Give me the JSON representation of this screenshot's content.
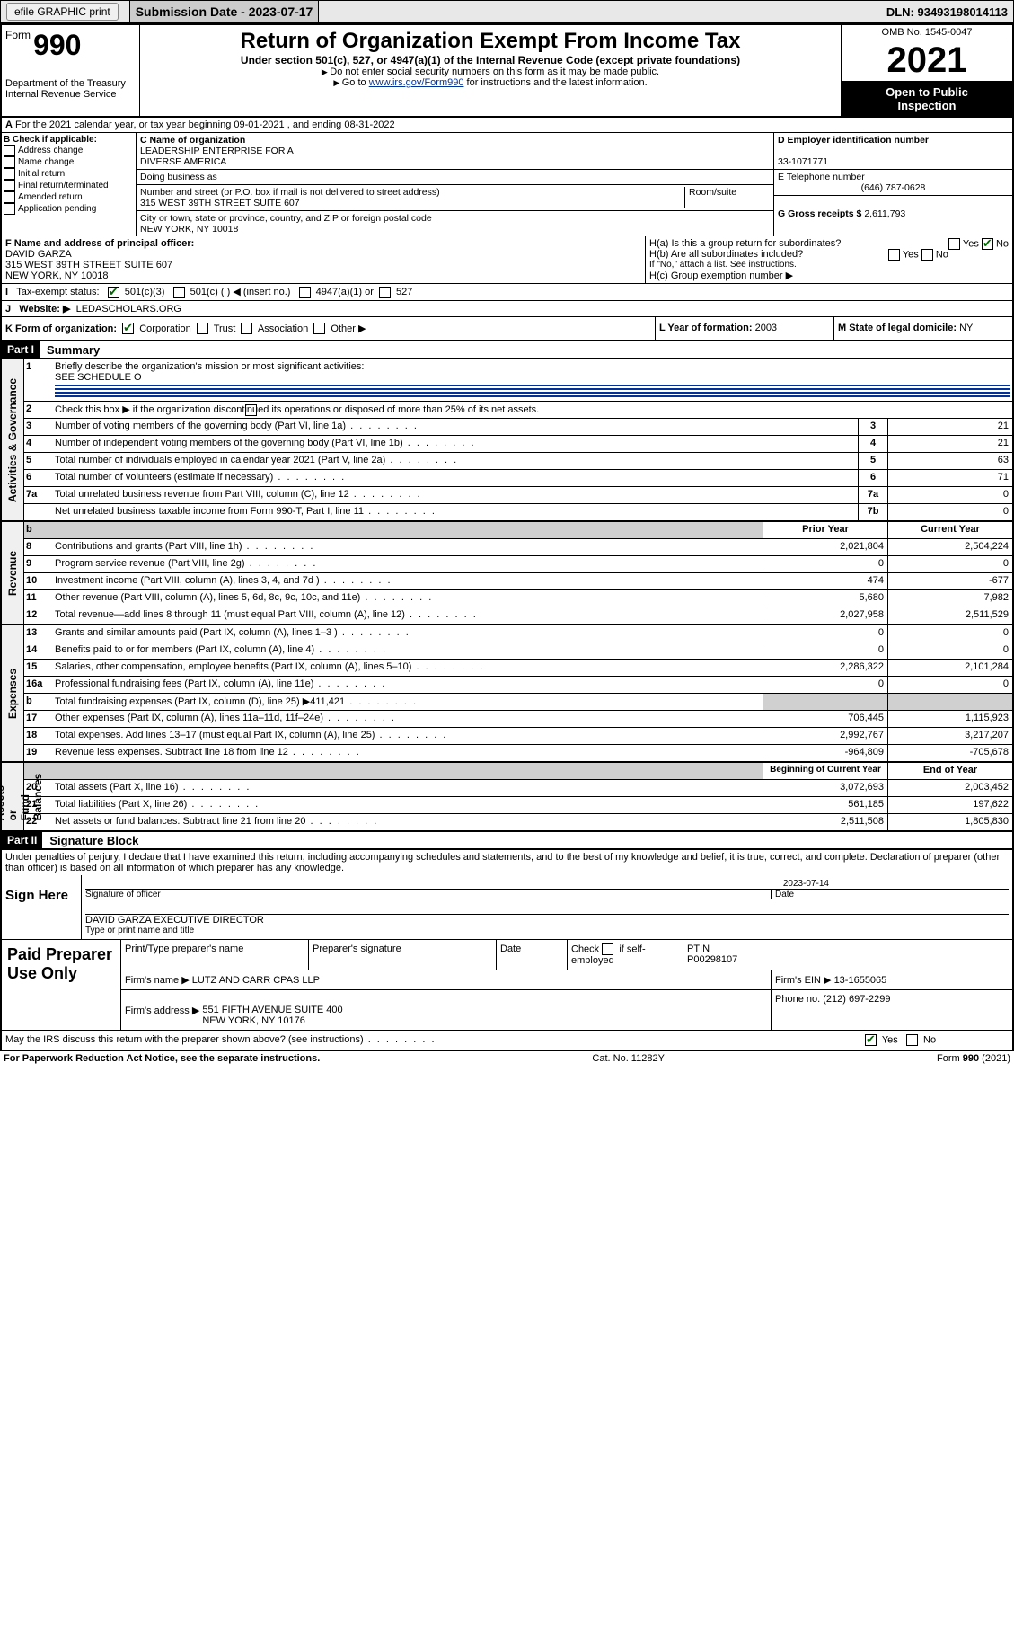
{
  "topbar": {
    "efile": "efile GRAPHIC print",
    "sub_label": "Submission Date - 2023-07-17",
    "dln": "DLN: 93493198014113"
  },
  "header": {
    "form_word": "Form",
    "form_num": "990",
    "dept": "Department of the Treasury\nInternal Revenue Service",
    "title": "Return of Organization Exempt From Income Tax",
    "sub": "Under section 501(c), 527, or 4947(a)(1) of the Internal Revenue Code (except private foundations)",
    "note1": "Do not enter social security numbers on this form as it may be made public.",
    "note2_a": "Go to ",
    "note2_link": "www.irs.gov/Form990",
    "note2_b": " for instructions and the latest information.",
    "omb": "OMB No. 1545-0047",
    "year": "2021",
    "open_pub": "Open to Public\nInspection"
  },
  "A": {
    "text": "For the 2021 calendar year, or tax year beginning 09-01-2021   , and ending 08-31-2022"
  },
  "B": {
    "label": "B Check if applicable:",
    "items": [
      "Address change",
      "Name change",
      "Initial return",
      "Final return/terminated",
      "Amended return",
      "Application pending"
    ]
  },
  "C": {
    "name_lbl": "C Name of organization",
    "name": "LEADERSHIP ENTERPRISE FOR A\nDIVERSE AMERICA",
    "dba_lbl": "Doing business as",
    "addr_lbl": "Number and street (or P.O. box if mail is not delivered to street address)",
    "room_lbl": "Room/suite",
    "addr": "315 WEST 39TH STREET SUITE 607",
    "city_lbl": "City or town, state or province, country, and ZIP or foreign postal code",
    "city": "NEW YORK, NY  10018"
  },
  "D": {
    "lbl": "D Employer identification number",
    "val": "33-1071771"
  },
  "E": {
    "lbl": "E Telephone number",
    "val": "(646) 787-0628"
  },
  "G": {
    "lbl": "G Gross receipts $",
    "val": "2,611,793"
  },
  "F": {
    "lbl": "F  Name and address of principal officer:",
    "val": "DAVID GARZA\n315 WEST 39TH STREET SUITE 607\nNEW YORK, NY  10018"
  },
  "H": {
    "a": "H(a)  Is this a group return for subordinates?",
    "b": "H(b)  Are all subordinates included?",
    "b2": "If \"No,\" attach a list. See instructions.",
    "c": "H(c)  Group exemption number ▶",
    "yes": "Yes",
    "no": "No"
  },
  "I": {
    "lbl": "Tax-exempt status:",
    "o1": "501(c)(3)",
    "o2": "501(c) (  ) ◀ (insert no.)",
    "o3": "4947(a)(1) or",
    "o4": "527"
  },
  "J": {
    "lbl": "Website: ▶",
    "val": "LEDASCHOLARS.ORG"
  },
  "K": {
    "lbl": "K Form of organization:",
    "o1": "Corporation",
    "o2": "Trust",
    "o3": "Association",
    "o4": "Other ▶",
    "L_lbl": "L Year of formation:",
    "L_val": "2003",
    "M_lbl": "M State of legal domicile:",
    "M_val": "NY"
  },
  "part1": {
    "hdr": "Part I",
    "title": "Summary"
  },
  "summary": {
    "q1": "Briefly describe the organization's mission or most significant activities:",
    "q1v": "SEE SCHEDULE O",
    "q2": "Check this box ▶      if the organization discontinued its operations or disposed of more than 25% of its net assets.",
    "rows_gov": [
      {
        "n": "3",
        "d": "Number of voting members of the governing body (Part VI, line 1a)",
        "box": "3",
        "v": "21"
      },
      {
        "n": "4",
        "d": "Number of independent voting members of the governing body (Part VI, line 1b)",
        "box": "4",
        "v": "21"
      },
      {
        "n": "5",
        "d": "Total number of individuals employed in calendar year 2021 (Part V, line 2a)",
        "box": "5",
        "v": "63"
      },
      {
        "n": "6",
        "d": "Total number of volunteers (estimate if necessary)",
        "box": "6",
        "v": "71"
      },
      {
        "n": "7a",
        "d": "Total unrelated business revenue from Part VIII, column (C), line 12",
        "box": "7a",
        "v": "0"
      },
      {
        "n": "",
        "d": "Net unrelated business taxable income from Form 990-T, Part I, line 11",
        "box": "7b",
        "v": "0"
      }
    ],
    "col_prior": "Prior Year",
    "col_curr": "Current Year",
    "rows_rev": [
      {
        "n": "8",
        "d": "Contributions and grants (Part VIII, line 1h)",
        "p": "2,021,804",
        "c": "2,504,224"
      },
      {
        "n": "9",
        "d": "Program service revenue (Part VIII, line 2g)",
        "p": "0",
        "c": "0"
      },
      {
        "n": "10",
        "d": "Investment income (Part VIII, column (A), lines 3, 4, and 7d )",
        "p": "474",
        "c": "-677"
      },
      {
        "n": "11",
        "d": "Other revenue (Part VIII, column (A), lines 5, 6d, 8c, 9c, 10c, and 11e)",
        "p": "5,680",
        "c": "7,982"
      },
      {
        "n": "12",
        "d": "Total revenue—add lines 8 through 11 (must equal Part VIII, column (A), line 12)",
        "p": "2,027,958",
        "c": "2,511,529"
      }
    ],
    "rows_exp": [
      {
        "n": "13",
        "d": "Grants and similar amounts paid (Part IX, column (A), lines 1–3 )",
        "p": "0",
        "c": "0"
      },
      {
        "n": "14",
        "d": "Benefits paid to or for members (Part IX, column (A), line 4)",
        "p": "0",
        "c": "0"
      },
      {
        "n": "15",
        "d": "Salaries, other compensation, employee benefits (Part IX, column (A), lines 5–10)",
        "p": "2,286,322",
        "c": "2,101,284"
      },
      {
        "n": "16a",
        "d": "Professional fundraising fees (Part IX, column (A), line 11e)",
        "p": "0",
        "c": "0"
      },
      {
        "n": "b",
        "d": "Total fundraising expenses (Part IX, column (D), line 25) ▶411,421",
        "p": "",
        "c": "",
        "shade": true
      },
      {
        "n": "17",
        "d": "Other expenses (Part IX, column (A), lines 11a–11d, 11f–24e)",
        "p": "706,445",
        "c": "1,115,923"
      },
      {
        "n": "18",
        "d": "Total expenses. Add lines 13–17 (must equal Part IX, column (A), line 25)",
        "p": "2,992,767",
        "c": "3,217,207"
      },
      {
        "n": "19",
        "d": "Revenue less expenses. Subtract line 18 from line 12",
        "p": "-964,809",
        "c": "-705,678"
      }
    ],
    "col_beg": "Beginning of Current Year",
    "col_end": "End of Year",
    "rows_net": [
      {
        "n": "20",
        "d": "Total assets (Part X, line 16)",
        "p": "3,072,693",
        "c": "2,003,452"
      },
      {
        "n": "21",
        "d": "Total liabilities (Part X, line 26)",
        "p": "561,185",
        "c": "197,622"
      },
      {
        "n": "22",
        "d": "Net assets or fund balances. Subtract line 21 from line 20",
        "p": "2,511,508",
        "c": "1,805,830"
      }
    ]
  },
  "side": {
    "gov": "Activities & Governance",
    "rev": "Revenue",
    "exp": "Expenses",
    "net": "Net Assets or\nFund Balances"
  },
  "part2": {
    "hdr": "Part II",
    "title": "Signature Block"
  },
  "sig": {
    "decl": "Under penalties of perjury, I declare that I have examined this return, including accompanying schedules and statements, and to the best of my knowledge and belief, it is true, correct, and complete. Declaration of preparer (other than officer) is based on all information of which preparer has any knowledge.",
    "here": "Sign Here",
    "sig_officer": "Signature of officer",
    "date_lbl": "Date",
    "date": "2023-07-14",
    "name": "DAVID GARZA  EXECUTIVE DIRECTOR",
    "name_lbl": "Type or print name and title"
  },
  "paid": {
    "title": "Paid Preparer Use Only",
    "h1": "Print/Type preparer's name",
    "h2": "Preparer's signature",
    "h3": "Date",
    "h4a": "Check",
    "h4b": "if self-employed",
    "h5": "PTIN",
    "ptin": "P00298107",
    "firm_lbl": "Firm's name   ▶",
    "firm": "LUTZ AND CARR CPAS LLP",
    "ein_lbl": "Firm's EIN ▶",
    "ein": "13-1655065",
    "addr_lbl": "Firm's address ▶",
    "addr": "551 FIFTH AVENUE SUITE 400\nNEW YORK, NY  10176",
    "phone_lbl": "Phone no.",
    "phone": "(212) 697-2299"
  },
  "may": {
    "q": "May the IRS discuss this return with the preparer shown above? (see instructions)",
    "yes": "Yes",
    "no": "No"
  },
  "footer": {
    "l": "For Paperwork Reduction Act Notice, see the separate instructions.",
    "m": "Cat. No. 11282Y",
    "r": "Form 990 (2021)"
  }
}
